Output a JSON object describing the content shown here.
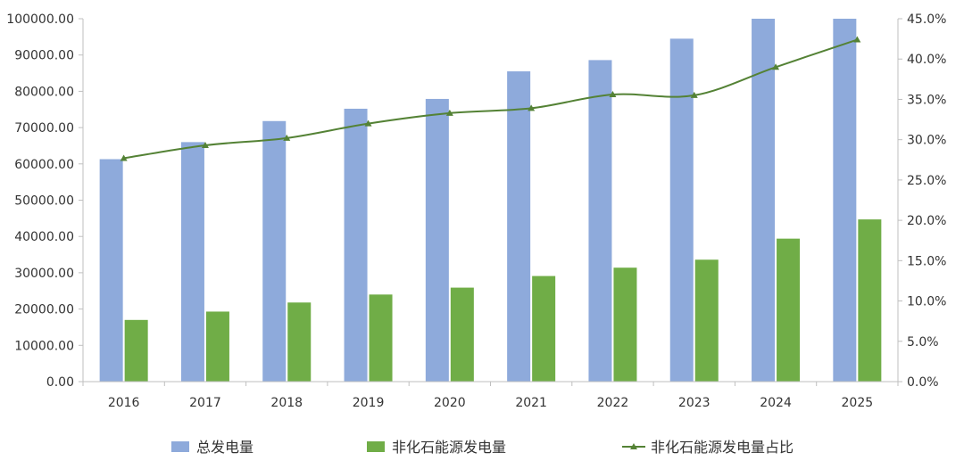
{
  "chart_data": {
    "type": "bar",
    "categories": [
      "2016",
      "2017",
      "2018",
      "2019",
      "2020",
      "2021",
      "2022",
      "2023",
      "2024",
      "2025"
    ],
    "series": [
      {
        "name": "总发电量",
        "type": "bar",
        "axis": "left",
        "color": "#8eaadb",
        "values": [
          61300,
          66000,
          71800,
          75200,
          77900,
          85500,
          88600,
          94500,
          100000,
          100000
        ]
      },
      {
        "name": "非化石能源发电量",
        "type": "bar",
        "axis": "left",
        "color": "#70ad47",
        "values": [
          17000,
          19300,
          21800,
          24000,
          25900,
          29100,
          31400,
          33600,
          39400,
          44700
        ]
      },
      {
        "name": "非化石能源发电量占比",
        "type": "line",
        "axis": "right",
        "color": "#548235",
        "marker": "triangle",
        "values": [
          27.7,
          29.3,
          30.2,
          32.0,
          33.3,
          33.9,
          35.6,
          35.5,
          39.0,
          42.4
        ]
      }
    ],
    "y_left": {
      "min": 0,
      "max": 100000,
      "ticks": [
        "0.00",
        "10000.00",
        "20000.00",
        "30000.00",
        "40000.00",
        "50000.00",
        "60000.00",
        "70000.00",
        "80000.00",
        "90000.00",
        "100000.00"
      ]
    },
    "y_right": {
      "min": 0,
      "max": 45,
      "ticks": [
        "0.0%",
        "5.0%",
        "10.0%",
        "15.0%",
        "20.0%",
        "25.0%",
        "30.0%",
        "35.0%",
        "40.0%",
        "45.0%"
      ]
    },
    "grid": false,
    "legend_position": "bottom"
  }
}
